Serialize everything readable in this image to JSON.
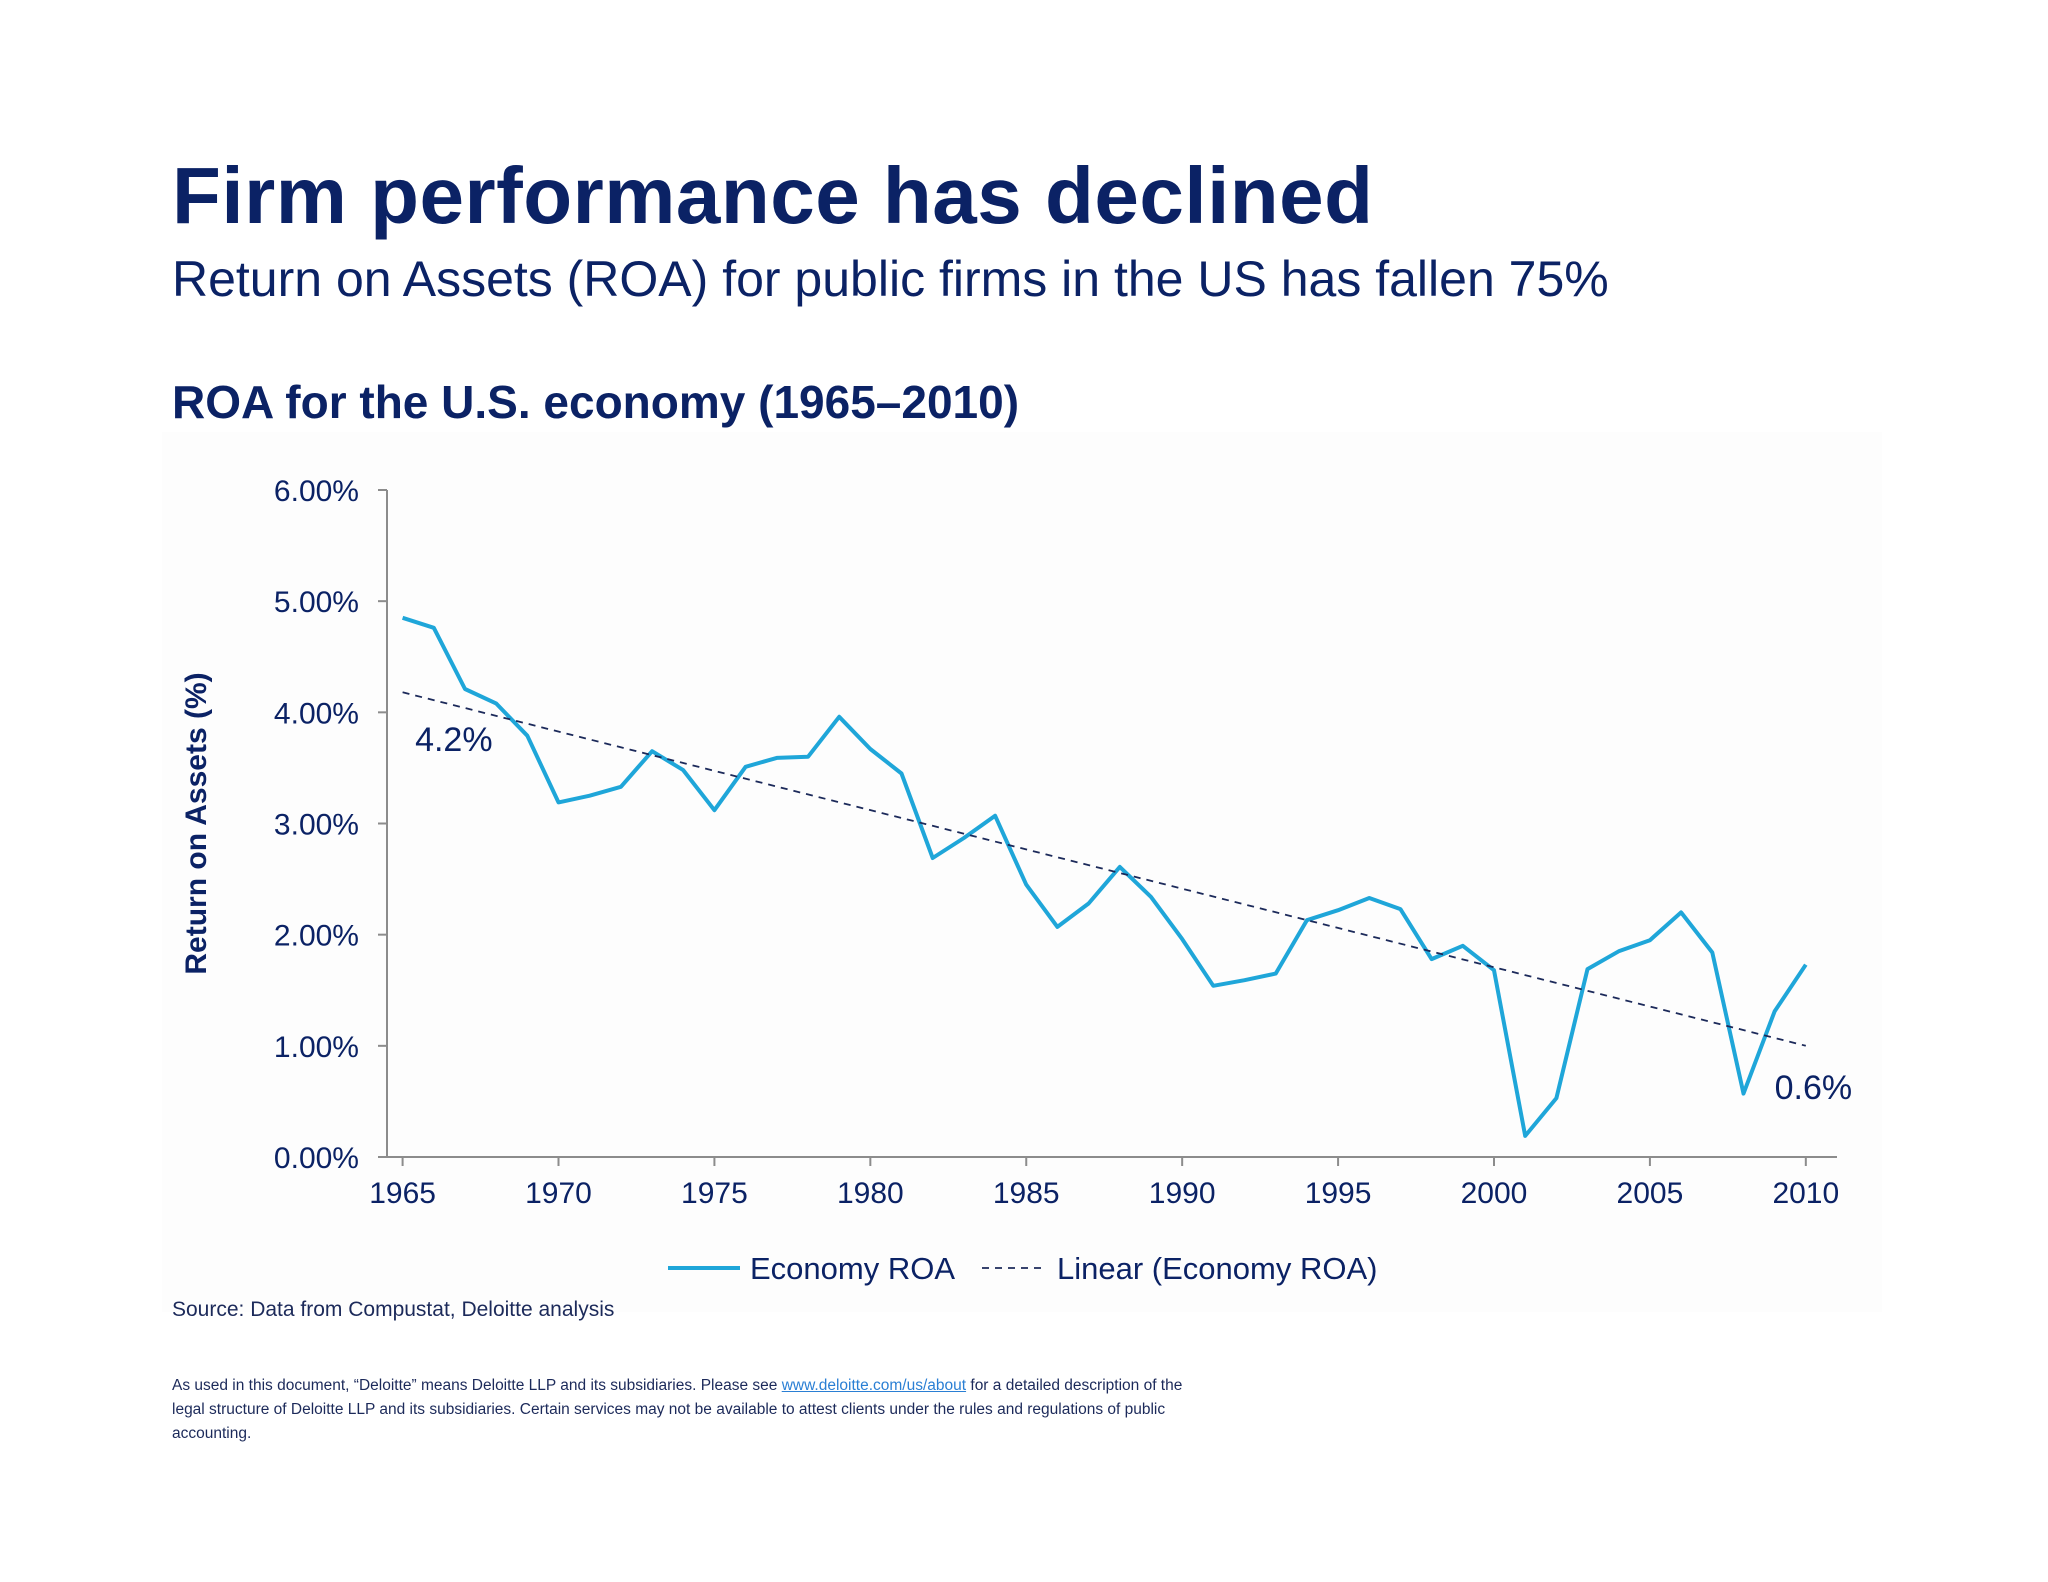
{
  "slide": {
    "title": "Firm performance has declined",
    "subtitle": "Return on Assets (ROA) for public firms in the US has fallen 75%",
    "chart_heading": "ROA for the U.S. economy (1965–2010)",
    "source": "Source: Data from Compustat, Deloitte analysis",
    "disclaimer_before_link": "As used in this document, “Deloitte” means Deloitte LLP and its subsidiaries. Please see ",
    "disclaimer_link": "www.deloitte.com/us/about",
    "disclaimer_after_link": " for a detailed description of the legal structure of Deloitte LLP and its subsidiaries. Certain services may not be available to attest clients under the rules and regulations of public accounting."
  },
  "colors": {
    "title": "#0b2265",
    "series_line": "#1fa6d9",
    "trend_line": "#1c2a5a",
    "axis": "#8c8c8c",
    "link": "#2a7fd4"
  },
  "chart_data": {
    "type": "line",
    "title": "",
    "xlabel": "",
    "ylabel": "Return on Assets (%)",
    "xlim": [
      1964.5,
      2011
    ],
    "ylim": [
      0,
      6
    ],
    "x_ticks": [
      1965,
      1970,
      1975,
      1980,
      1985,
      1990,
      1995,
      2000,
      2005,
      2010
    ],
    "y_ticks": [
      0,
      1,
      2,
      3,
      4,
      5,
      6
    ],
    "y_tick_labels": [
      "0.00%",
      "1.00%",
      "2.00%",
      "3.00%",
      "4.00%",
      "5.00%",
      "6.00%"
    ],
    "grid": false,
    "legend_position": "bottom-center",
    "series": [
      {
        "name": "Economy ROA",
        "style": "solid",
        "x": [
          1965,
          1966,
          1967,
          1968,
          1969,
          1970,
          1971,
          1972,
          1973,
          1974,
          1975,
          1976,
          1977,
          1978,
          1979,
          1980,
          1981,
          1982,
          1983,
          1984,
          1985,
          1986,
          1987,
          1988,
          1989,
          1990,
          1991,
          1992,
          1993,
          1994,
          1995,
          1996,
          1997,
          1998,
          1999,
          2000,
          2001,
          2002,
          2003,
          2004,
          2005,
          2006,
          2007,
          2008,
          2009,
          2010
        ],
        "values": [
          4.85,
          4.76,
          4.21,
          4.08,
          3.79,
          3.19,
          3.25,
          3.33,
          3.65,
          3.48,
          3.12,
          3.51,
          3.59,
          3.6,
          3.96,
          3.67,
          3.45,
          2.69,
          2.87,
          3.07,
          2.45,
          2.07,
          2.28,
          2.61,
          2.34,
          1.96,
          1.54,
          1.59,
          1.65,
          2.13,
          2.22,
          2.33,
          2.23,
          1.78,
          1.9,
          1.68,
          0.19,
          0.53,
          1.69,
          1.85,
          1.95,
          2.2,
          1.84,
          0.57,
          1.31,
          1.73
        ]
      },
      {
        "name": "Linear (Economy ROA)",
        "style": "dashed",
        "x": [
          1965,
          2010
        ],
        "values": [
          4.18,
          1.0
        ]
      }
    ],
    "annotations": [
      {
        "text": "4.2%",
        "x": 1965.4,
        "y": 3.65
      },
      {
        "text": "0.6%",
        "x": 2009,
        "y": 0.52
      }
    ]
  }
}
